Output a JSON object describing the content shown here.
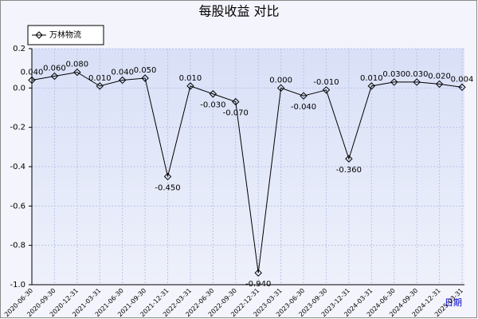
{
  "chart_data": {
    "type": "line",
    "title": "每股收益 对比",
    "x_label": "日期",
    "categories": [
      "2020-06-30",
      "2020-09-30",
      "2020-12-31",
      "2021-03-31",
      "2021-06-30",
      "2021-09-30",
      "2021-12-31",
      "2022-03-31",
      "2022-06-30",
      "2022-09-30",
      "2022-12-31",
      "2023-03-31",
      "2023-06-30",
      "2023-09-30",
      "2023-12-31",
      "2024-03-31",
      "2024-06-30",
      "2024-09-30",
      "2024-12-31",
      "2025-03-31"
    ],
    "series": [
      {
        "name": "万林物流",
        "color": "#000000",
        "values": [
          0.04,
          0.06,
          0.08,
          0.01,
          0.04,
          0.05,
          -0.45,
          0.01,
          -0.03,
          -0.07,
          -0.94,
          0,
          -0.04,
          -0.01,
          -0.36,
          0.01,
          0.03,
          0.03,
          0.02,
          0.004
        ],
        "value_labels": [
          "0.040",
          "0.060",
          "0.080",
          "0.010",
          "0.040",
          "0.050",
          "-0.450",
          "0.010",
          "-0.030",
          "-0.070",
          "-0.940",
          "0.000",
          "-0.040",
          "-0.010",
          "-0.360",
          "0.010",
          "0.030",
          "0.030",
          "0.020",
          "0.004"
        ]
      }
    ],
    "ylim": [
      -1,
      0.2
    ],
    "yticks": [
      {
        "value": -1,
        "label": "-1.0"
      },
      -0.8,
      -0.6,
      -0.4,
      -0.2,
      {
        "value": 0,
        "label": "0.0"
      },
      0.2
    ],
    "grid": true,
    "legend": "top-left"
  }
}
